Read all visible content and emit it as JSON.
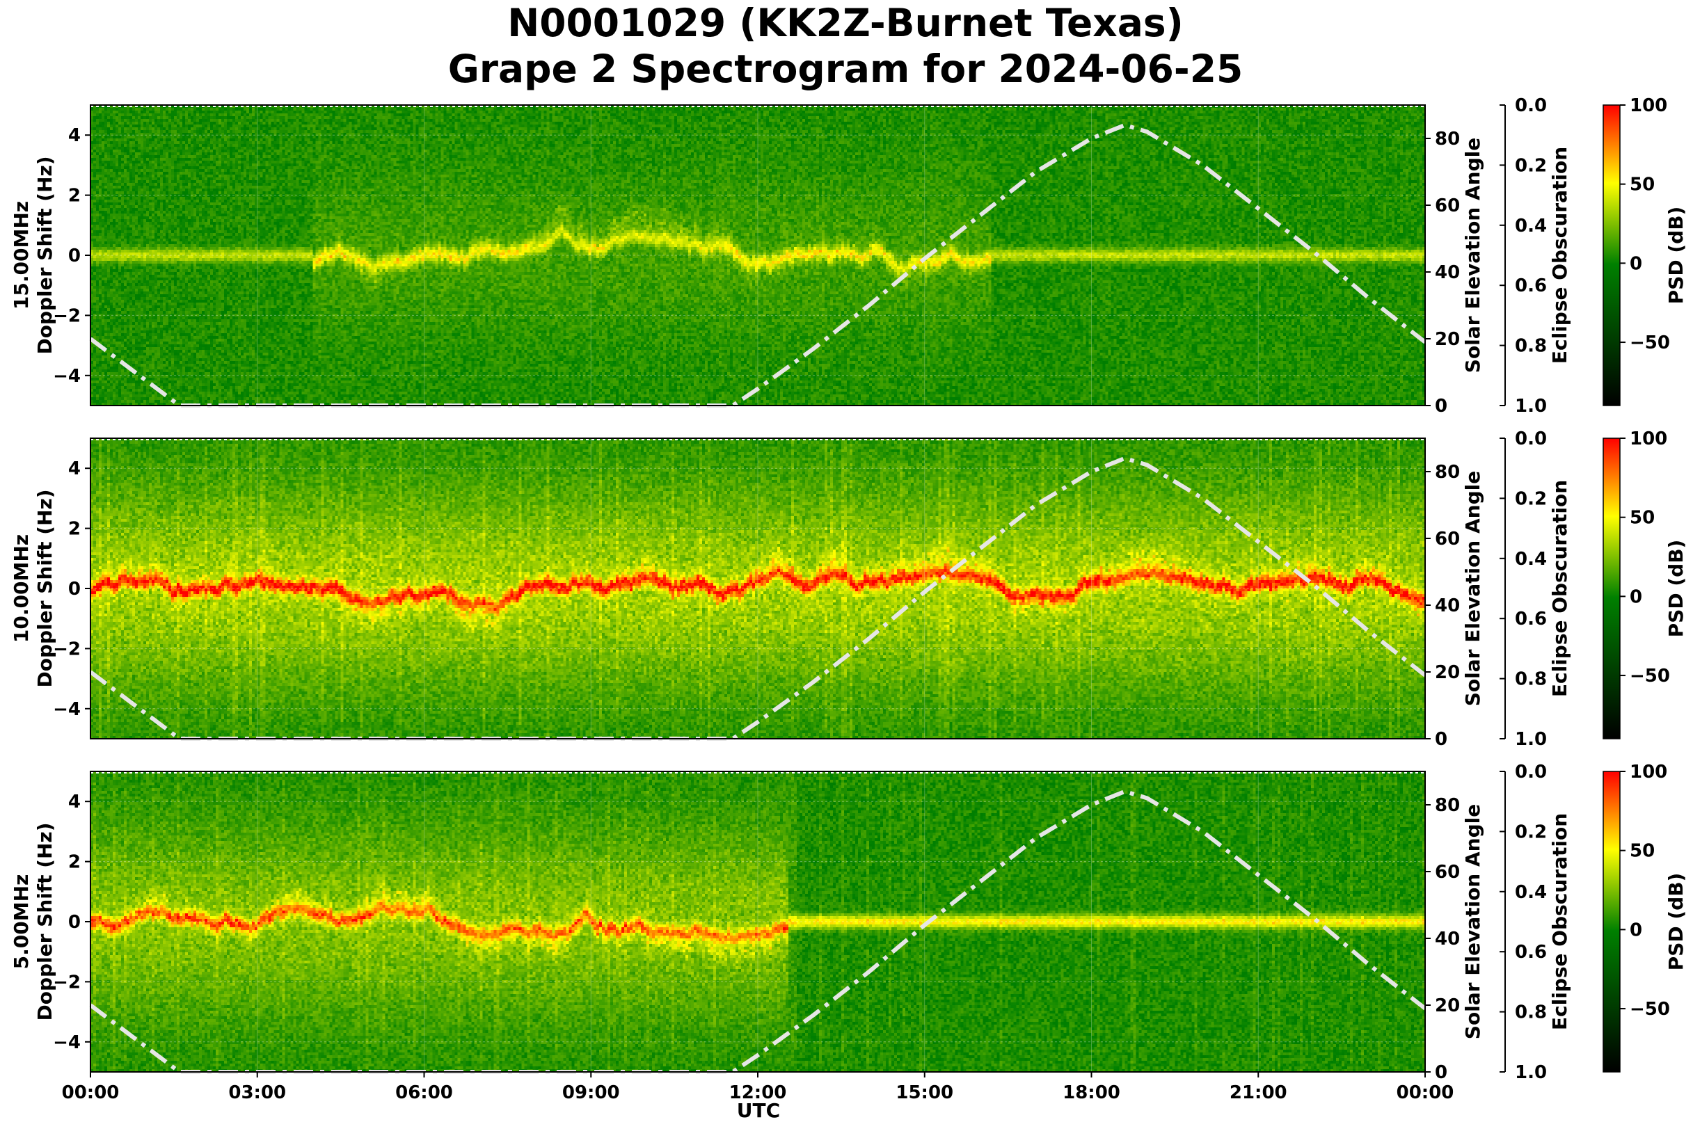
{
  "figure": {
    "title_line1": "N0001029 (KK2Z-Burnet Texas)",
    "title_line2": "Grape 2 Spectrogram for 2024-06-25"
  },
  "colors": {
    "spectrogram_base": "#0f7a0f",
    "psd_low": "#000000",
    "psd_mid": "#008000",
    "psd_high_mid": "#ffff00",
    "psd_high": "#ff0000",
    "solar_curve": "#e6e6e6"
  },
  "chart_data": [
    {
      "type": "heatmap",
      "panel": "15.00MHz",
      "ylabel_line1": "15.00MHz",
      "ylabel_line2": "Doppler Shift (Hz)",
      "y_ticks": [
        "4",
        "2",
        "0",
        "−2",
        "−4"
      ],
      "y_tick_values": [
        4,
        2,
        0,
        -2,
        -4
      ],
      "ylim": [
        -5,
        5
      ],
      "right_ylabel": "Solar Elevation Angle",
      "right_ticks": [
        "80",
        "60",
        "40",
        "20",
        "0"
      ],
      "right_tick_values": [
        80,
        60,
        40,
        20,
        0
      ],
      "right_ylim": [
        0,
        90
      ],
      "eclipse_label": "Eclipse Obscuration",
      "eclipse_ticks": [
        "0.0",
        "0.2",
        "0.4",
        "0.6",
        "0.8",
        "1.0"
      ],
      "eclipse_tick_values": [
        0,
        0.2,
        0.4,
        0.6,
        0.8,
        1.0
      ],
      "colorbar_label": "PSD (dB)",
      "colorbar_ticks": [
        "100",
        "50",
        "0",
        "−50"
      ],
      "colorbar_tick_values": [
        100,
        50,
        0,
        -50
      ],
      "colorbar_range": [
        -90,
        100
      ],
      "noise_level": 0.12,
      "carrier_strength": 0.55,
      "activity_hours": [
        4,
        16.2
      ]
    },
    {
      "type": "heatmap",
      "panel": "10.00MHz",
      "ylabel_line1": "10.00MHz",
      "ylabel_line2": "Doppler Shift (Hz)",
      "y_ticks": [
        "4",
        "2",
        "0",
        "−2",
        "−4"
      ],
      "y_tick_values": [
        4,
        2,
        0,
        -2,
        -4
      ],
      "ylim": [
        -5,
        5
      ],
      "right_ylabel": "Solar Elevation Angle",
      "right_ticks": [
        "80",
        "60",
        "40",
        "20",
        "0"
      ],
      "right_tick_values": [
        80,
        60,
        40,
        20,
        0
      ],
      "right_ylim": [
        0,
        90
      ],
      "eclipse_label": "Eclipse Obscuration",
      "eclipse_ticks": [
        "0.0",
        "0.2",
        "0.4",
        "0.6",
        "0.8",
        "1.0"
      ],
      "eclipse_tick_values": [
        0,
        0.2,
        0.4,
        0.6,
        0.8,
        1.0
      ],
      "colorbar_label": "PSD (dB)",
      "colorbar_ticks": [
        "100",
        "50",
        "0",
        "−50"
      ],
      "colorbar_tick_values": [
        100,
        50,
        0,
        -50
      ],
      "colorbar_range": [
        -90,
        100
      ],
      "noise_level": 0.45,
      "carrier_strength": 0.9,
      "activity_hours": [
        0,
        24
      ]
    },
    {
      "type": "heatmap",
      "panel": "5.00MHz",
      "ylabel_line1": "5.00MHz",
      "ylabel_line2": "Doppler Shift (Hz)",
      "y_ticks": [
        "4",
        "2",
        "0",
        "−2",
        "−4"
      ],
      "y_tick_values": [
        4,
        2,
        0,
        -2,
        -4
      ],
      "ylim": [
        -5,
        5
      ],
      "right_ylabel": "Solar Elevation Angle",
      "right_ticks": [
        "80",
        "60",
        "40",
        "20",
        "0"
      ],
      "right_tick_values": [
        80,
        60,
        40,
        20,
        0
      ],
      "right_ylim": [
        0,
        90
      ],
      "eclipse_label": "Eclipse Obscuration",
      "eclipse_ticks": [
        "0.0",
        "0.2",
        "0.4",
        "0.6",
        "0.8",
        "1.0"
      ],
      "eclipse_tick_values": [
        0,
        0.2,
        0.4,
        0.6,
        0.8,
        1.0
      ],
      "colorbar_label": "PSD (dB)",
      "colorbar_ticks": [
        "100",
        "50",
        "0",
        "−50"
      ],
      "colorbar_tick_values": [
        100,
        50,
        0,
        -50
      ],
      "colorbar_range": [
        -90,
        100
      ],
      "noise_level": 0.35,
      "carrier_strength": 0.8,
      "activity_hours": [
        0,
        12.5
      ]
    }
  ],
  "x_axis": {
    "label": "UTC",
    "ticks": [
      "00:00",
      "03:00",
      "06:00",
      "09:00",
      "12:00",
      "15:00",
      "18:00",
      "21:00",
      "00:00"
    ],
    "tick_hours": [
      0,
      3,
      6,
      9,
      12,
      15,
      18,
      21,
      24
    ],
    "xlim_hours": [
      0,
      24
    ]
  },
  "solar_elevation": {
    "hours": [
      0,
      1.6,
      11.55,
      12,
      13,
      14,
      15,
      16,
      17,
      18,
      18.6,
      19,
      20,
      21,
      22,
      23,
      24
    ],
    "degrees": [
      20,
      0,
      0,
      5,
      17,
      30,
      44,
      57,
      70,
      80,
      84,
      82,
      72,
      59,
      46,
      32,
      19
    ]
  }
}
